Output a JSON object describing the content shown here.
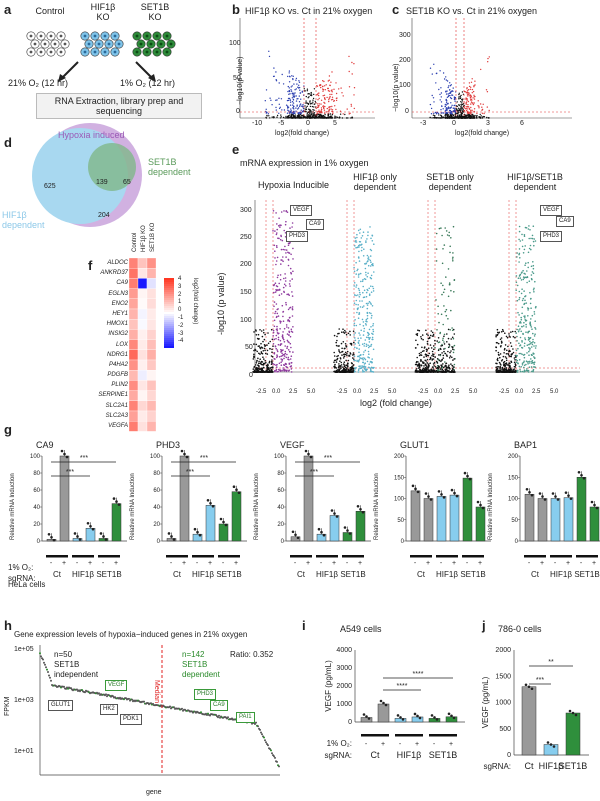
{
  "panel_letters": {
    "a": "a",
    "b": "b",
    "c": "c",
    "d": "d",
    "e": "e",
    "f": "f",
    "g": "g",
    "h": "h",
    "i": "i",
    "j": "j"
  },
  "a": {
    "control": "Control",
    "hif1b_ko": "HIF1β\nKO",
    "set1b_ko": "SET1B\nKO",
    "o2_21": "21% O₂ (12 hr)",
    "o2_1": "1% O₂ (12 hr)",
    "box": "RNA Extraction, library prep and sequencing",
    "colors": {
      "control": "#ffffff",
      "hif": "#7fc4ea",
      "set": "#2e8b3a"
    }
  },
  "b": {
    "title": "HIF1β KO vs. Ct in 21% oxygen",
    "xlabel": "log2(fold change)",
    "ylabel": "−log10(p value)",
    "yticks": [
      "100",
      "50",
      "0"
    ],
    "xticks": [
      "-10",
      "-5",
      "0",
      "5"
    ]
  },
  "c": {
    "title": "SET1B KO vs. Ct in 21% oxygen",
    "xlabel": "log2(fold change)",
    "ylabel": "−log10(p value)",
    "yticks": [
      "300",
      "200",
      "100",
      "0"
    ],
    "xticks": [
      "-3",
      "0",
      "3",
      "6"
    ]
  },
  "d": {
    "hypoxia": "Hypoxia induced",
    "set1b": "SET1B\ndependent",
    "hif": "HIF1β\ndependent",
    "n625": "625",
    "n139": "139",
    "n65": "65",
    "n204": "204"
  },
  "e": {
    "title": "mRNA expression in 1% oxygen",
    "groups": [
      "Hypoxia Inducible",
      "HIF1β only\ndependent",
      "SET1B only\ndependent",
      "HIF1β/SET1B\ndependent"
    ],
    "xlabel": "log2 (fold change)",
    "ylabel": "-log10 (p value)",
    "yticks": [
      "300",
      "250",
      "200",
      "150",
      "100",
      "50",
      "0"
    ],
    "xticks": [
      "-2.5",
      "0.0",
      "2.5",
      "5.0"
    ],
    "callouts": [
      "VEGF",
      "CA9",
      "PHD3"
    ]
  },
  "f": {
    "columns": [
      "Control",
      "HIF1β KO",
      "SET1B KO"
    ],
    "genes": [
      "ALDOC",
      "ANKRD37",
      "CA9",
      "EGLN3",
      "ENO2",
      "HEY1",
      "HMOX1",
      "INSIG2",
      "LOX",
      "NDRG1",
      "P4HA2",
      "PDGFB",
      "PLIN2",
      "SERPINE1",
      "SLC2A1",
      "SLC2A3",
      "VEGFA"
    ],
    "legend_label": "log2(fold change)",
    "legend_ticks": [
      "4",
      "3",
      "2",
      "1",
      "0",
      "-1",
      "-2",
      "-3",
      "-4"
    ]
  },
  "g": {
    "ylabel": "Relative mRNA Induction",
    "charts": [
      {
        "title": "CA9",
        "yticks": [
          "100",
          "80",
          "60",
          "40",
          "20",
          "0"
        ],
        "values": [
          2,
          100,
          3,
          15,
          3,
          44
        ],
        "sig": [
          "***",
          "***"
        ]
      },
      {
        "title": "PHD3",
        "yticks": [
          "100",
          "80",
          "60",
          "40",
          "20",
          "0"
        ],
        "values": [
          3,
          100,
          8,
          42,
          20,
          58
        ],
        "sig": [
          "***",
          "***"
        ]
      },
      {
        "title": "VEGF",
        "yticks": [
          "100",
          "80",
          "60",
          "40",
          "20",
          "0"
        ],
        "values": [
          5,
          100,
          8,
          30,
          10,
          35
        ],
        "sig": [
          "***",
          "***"
        ]
      },
      {
        "title": "GLUT1",
        "yticks": [
          "200",
          "150",
          "100",
          "50",
          "0"
        ],
        "values": [
          118,
          100,
          105,
          108,
          148,
          80
        ],
        "sig": []
      },
      {
        "title": "BAP1",
        "yticks": [
          "200",
          "150",
          "100",
          "50",
          "0"
        ],
        "values": [
          110,
          100,
          100,
          102,
          150,
          80
        ],
        "sig": []
      }
    ],
    "o2_label": "1% O₂:",
    "sg_label": "sgRNA:",
    "signs": [
      "-",
      "+",
      "-",
      "+",
      "-",
      "+"
    ],
    "groups": [
      "Ct",
      "HIF1β",
      "SET1B"
    ],
    "cell": "HeLa cells"
  },
  "h": {
    "title": "Gene expression levels of hypoxia−induced genes in 21% oxygen",
    "ylabel": "FPKM",
    "xlabel": "gene",
    "yticks": [
      "1e+05",
      "1e+03",
      "1e+01"
    ],
    "median": "Median",
    "left": "n=50\nSET1B\nindependent",
    "right": "n=142\nSET1B\ndependent",
    "ratio": "Ratio: 0.352",
    "genes_left": [
      "VEGF",
      "GLUT1",
      "HK2",
      "PDK1"
    ],
    "genes_right": [
      "PHD3",
      "CA9",
      "PAI1"
    ]
  },
  "i": {
    "title": "A549 cells",
    "ylabel": "VEGF (pg/mL)",
    "yticks": [
      "4000",
      "3000",
      "2000",
      "1000",
      "0"
    ],
    "values": [
      250,
      1000,
      200,
      280,
      200,
      290
    ],
    "sig": [
      "****",
      "****"
    ],
    "o2_label": "1% O₂:",
    "sg_label": "sgRNA:",
    "signs": [
      "-",
      "+",
      "-",
      "+",
      "-",
      "+"
    ],
    "groups": [
      "Ct",
      "HIF1β",
      "SET1B"
    ]
  },
  "j": {
    "title": "786-0 cells",
    "ylabel": "VEGF (pg/mL)",
    "yticks": [
      "2000",
      "1500",
      "1000",
      "500",
      "0"
    ],
    "values": [
      1300,
      200,
      800
    ],
    "sig": [
      "***",
      "**"
    ],
    "sg_label": "sgRNA:",
    "groups": [
      "Ct",
      "HIF1β",
      "SET1B"
    ]
  }
}
